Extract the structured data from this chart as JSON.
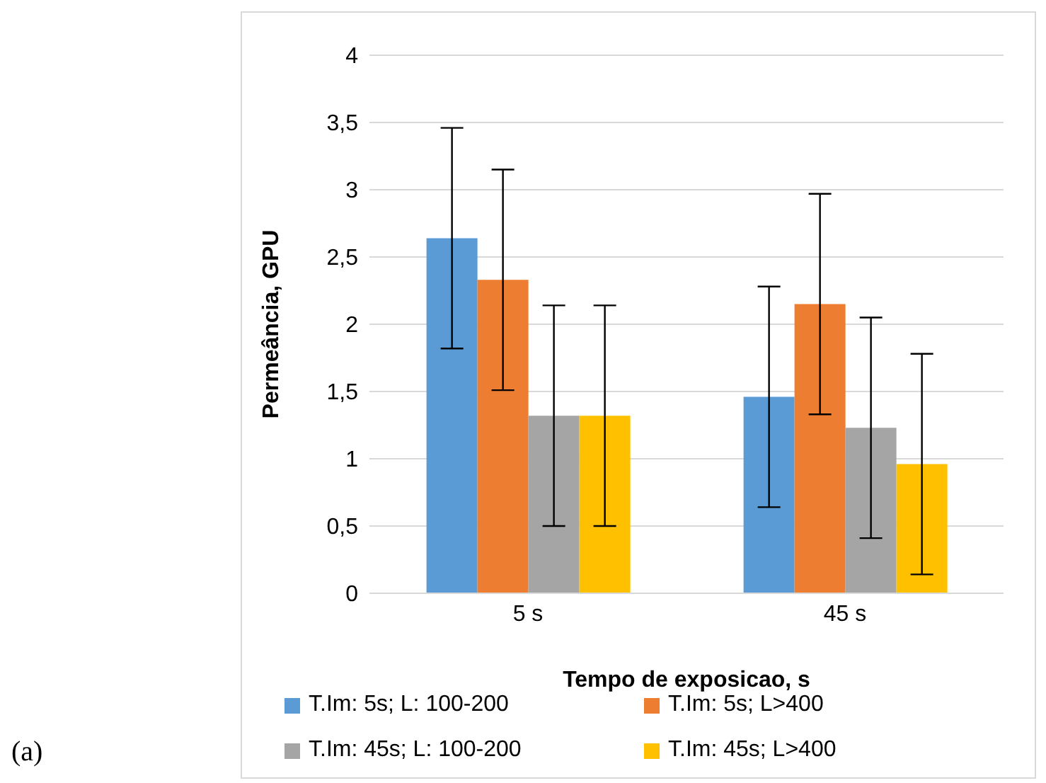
{
  "chart_data": {
    "type": "bar",
    "xlabel": "Tempo de exposicao, s",
    "ylabel": "Permeância, GPU",
    "categories": [
      "5 s",
      "45 s"
    ],
    "series": [
      {
        "name": "T.Im: 5s; L: 100-200",
        "color": "#5b9bd5",
        "values": [
          2.64,
          1.46
        ],
        "errors": [
          0.82,
          0.82
        ]
      },
      {
        "name": "T.Im: 5s; L>400",
        "color": "#ed7d31",
        "values": [
          2.33,
          2.15
        ],
        "errors": [
          0.82,
          0.82
        ]
      },
      {
        "name": "T.Im: 45s; L: 100-200",
        "color": "#a5a5a5",
        "values": [
          1.32,
          1.23
        ],
        "errors": [
          0.82,
          0.82
        ]
      },
      {
        "name": "T.Im: 45s; L>400",
        "color": "#ffc000",
        "values": [
          1.32,
          0.96
        ],
        "errors": [
          0.82,
          0.82
        ]
      }
    ],
    "ylim": [
      0,
      4
    ],
    "yticks": [
      {
        "value": 0,
        "label": "0"
      },
      {
        "value": 0.5,
        "label": "0,5"
      },
      {
        "value": 1,
        "label": "1"
      },
      {
        "value": 1.5,
        "label": "1,5"
      },
      {
        "value": 2,
        "label": "2"
      },
      {
        "value": 2.5,
        "label": "2,5"
      },
      {
        "value": 3,
        "label": "3"
      },
      {
        "value": 3.5,
        "label": "3,5"
      },
      {
        "value": 4,
        "label": "4"
      }
    ],
    "grid": "y",
    "legend": "bottom",
    "annotations": [
      "(a)"
    ]
  }
}
